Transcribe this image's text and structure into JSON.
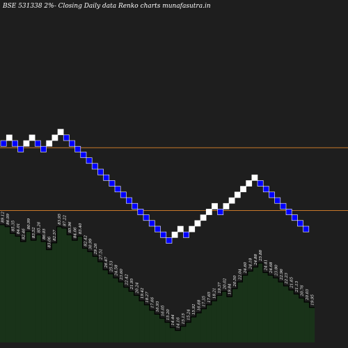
{
  "header": {
    "title": "BSE 531338  2%-  Closing Daily data  Renko  charts munafasutra.in"
  },
  "colors": {
    "background": "#1e1e1e",
    "up_brick": "#ffffff",
    "down_brick": "#0000ff",
    "brick_border": "#0000ff",
    "line": "#c8782a",
    "volume_fill": "#193319",
    "volume_outline": "#000000",
    "label": "#ffffff"
  },
  "chart_data": {
    "type": "renko",
    "title": "BSE 531338  2%-  Closing Daily data  Renko  charts munafasutra.in",
    "brick_size_percent": 2,
    "bricks": [
      {
        "dir": "down",
        "row": 0
      },
      {
        "dir": "up",
        "row": -1
      },
      {
        "dir": "down",
        "row": 0
      },
      {
        "dir": "down",
        "row": 1
      },
      {
        "dir": "up",
        "row": 0
      },
      {
        "dir": "up",
        "row": -1
      },
      {
        "dir": "down",
        "row": 0
      },
      {
        "dir": "down",
        "row": 1
      },
      {
        "dir": "up",
        "row": 0
      },
      {
        "dir": "up",
        "row": -1
      },
      {
        "dir": "up",
        "row": -2
      },
      {
        "dir": "down",
        "row": -1
      },
      {
        "dir": "down",
        "row": 0
      },
      {
        "dir": "down",
        "row": 1
      },
      {
        "dir": "down",
        "row": 2
      },
      {
        "dir": "down",
        "row": 3
      },
      {
        "dir": "down",
        "row": 4
      },
      {
        "dir": "down",
        "row": 5
      },
      {
        "dir": "down",
        "row": 6
      },
      {
        "dir": "down",
        "row": 7
      },
      {
        "dir": "down",
        "row": 8
      },
      {
        "dir": "down",
        "row": 9
      },
      {
        "dir": "down",
        "row": 10
      },
      {
        "dir": "down",
        "row": 11
      },
      {
        "dir": "down",
        "row": 12
      },
      {
        "dir": "down",
        "row": 13
      },
      {
        "dir": "down",
        "row": 14
      },
      {
        "dir": "down",
        "row": 15
      },
      {
        "dir": "down",
        "row": 16
      },
      {
        "dir": "down",
        "row": 17
      },
      {
        "dir": "up",
        "row": 16
      },
      {
        "dir": "up",
        "row": 15
      },
      {
        "dir": "down",
        "row": 16
      },
      {
        "dir": "up",
        "row": 15
      },
      {
        "dir": "up",
        "row": 14
      },
      {
        "dir": "up",
        "row": 13
      },
      {
        "dir": "up",
        "row": 12
      },
      {
        "dir": "up",
        "row": 11
      },
      {
        "dir": "down",
        "row": 12
      },
      {
        "dir": "up",
        "row": 11
      },
      {
        "dir": "up",
        "row": 10
      },
      {
        "dir": "up",
        "row": 9
      },
      {
        "dir": "up",
        "row": 8
      },
      {
        "dir": "up",
        "row": 7
      },
      {
        "dir": "up",
        "row": 6
      },
      {
        "dir": "down",
        "row": 7
      },
      {
        "dir": "down",
        "row": 8
      },
      {
        "dir": "down",
        "row": 9
      },
      {
        "dir": "down",
        "row": 10
      },
      {
        "dir": "down",
        "row": 11
      },
      {
        "dir": "down",
        "row": 12
      },
      {
        "dir": "down",
        "row": 13
      },
      {
        "dir": "down",
        "row": 14
      },
      {
        "dir": "down",
        "row": 15
      }
    ],
    "reference_lines_rows": [
      1.25,
      12.25
    ],
    "volume": [
      {
        "label": "89.12",
        "level": 175
      },
      {
        "label": "86.99",
        "level": 172
      },
      {
        "label": "85.35",
        "level": 162
      },
      {
        "label": "84.01",
        "level": 158
      },
      {
        "label": "82.46",
        "level": 150
      },
      {
        "label": "80.99",
        "level": 165
      },
      {
        "label": "83.52",
        "level": 152
      },
      {
        "label": "85.26",
        "level": 160
      },
      {
        "label": "86.05",
        "level": 150
      },
      {
        "label": "83.06",
        "level": 138
      },
      {
        "label": "82.57",
        "level": 148
      },
      {
        "label": "83.95",
        "level": 172
      },
      {
        "label": "87.22",
        "level": 170
      },
      {
        "label": "85.96",
        "level": 160
      },
      {
        "label": "84.06",
        "level": 152
      },
      {
        "label": "83.40",
        "level": 158
      },
      {
        "label": "82.42",
        "level": 140
      },
      {
        "label": "30.99",
        "level": 135
      },
      {
        "label": "29.26",
        "level": 128
      },
      {
        "label": "27.51",
        "level": 120
      },
      {
        "label": "26.47",
        "level": 108
      },
      {
        "label": "25.53",
        "level": 102
      },
      {
        "label": "24.58",
        "level": 96
      },
      {
        "label": "23.60",
        "level": 90
      },
      {
        "label": "22.42",
        "level": 82
      },
      {
        "label": "21.95",
        "level": 76
      },
      {
        "label": "20.24",
        "level": 70
      },
      {
        "label": "19.42",
        "level": 62
      },
      {
        "label": "18.27",
        "level": 56
      },
      {
        "label": "17.66",
        "level": 48
      },
      {
        "label": "16.93",
        "level": 42
      },
      {
        "label": "16.05",
        "level": 36
      },
      {
        "label": "15.20",
        "level": 30
      },
      {
        "label": "14.44",
        "level": 22
      },
      {
        "label": "14.16",
        "level": 18
      },
      {
        "label": "15.15",
        "level": 24
      },
      {
        "label": "15.24",
        "level": 30
      },
      {
        "label": "15.92",
        "level": 38
      },
      {
        "label": "16.68",
        "level": 44
      },
      {
        "label": "17.35",
        "level": 50
      },
      {
        "label": "17.65",
        "level": 56
      },
      {
        "label": "18.21",
        "level": 62
      },
      {
        "label": "19.37",
        "level": 70
      },
      {
        "label": "20.02",
        "level": 76
      },
      {
        "label": "19.84",
        "level": 68
      },
      {
        "label": "20.50",
        "level": 80
      },
      {
        "label": "22.04",
        "level": 90
      },
      {
        "label": "24.60",
        "level": 100
      },
      {
        "label": "24.18",
        "level": 106
      },
      {
        "label": "24.88",
        "level": 112
      },
      {
        "label": "25.88",
        "level": 118
      },
      {
        "label": "24.41",
        "level": 104
      },
      {
        "label": "24.68",
        "level": 100
      },
      {
        "label": "23.80",
        "level": 96
      },
      {
        "label": "22.96",
        "level": 90
      },
      {
        "label": "22.23",
        "level": 84
      },
      {
        "label": "21.65",
        "level": 78
      },
      {
        "label": "21.13",
        "level": 72
      },
      {
        "label": "20.76",
        "level": 66
      },
      {
        "label": "20.03",
        "level": 60
      },
      {
        "label": "19.95",
        "level": 52
      }
    ]
  }
}
